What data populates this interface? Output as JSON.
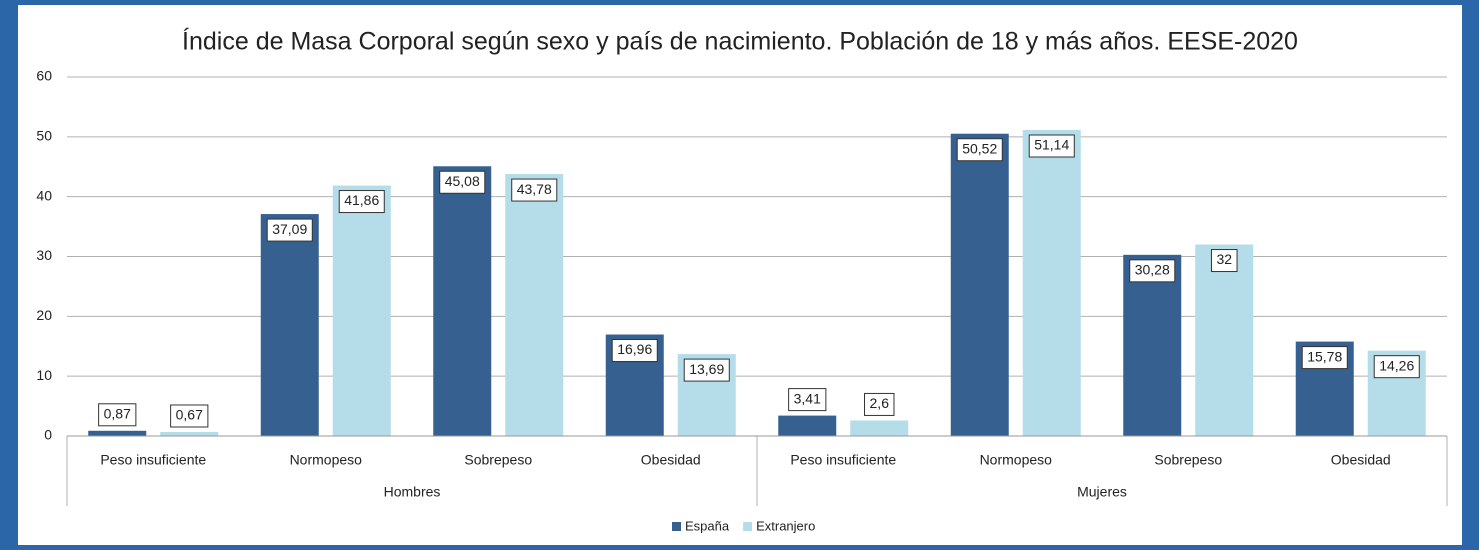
{
  "chart_data": {
    "type": "bar",
    "title": "Índice de Masa Corporal según sexo y país de nacimiento. Población de 18 y más años. EESE-2020",
    "categories": [
      "Peso insuficiente",
      "Normopeso",
      "Sobrepeso",
      "Obesidad",
      "Peso insuficiente",
      "Normopeso",
      "Sobrepeso",
      "Obesidad"
    ],
    "groups": [
      "Hombres",
      "Mujeres"
    ],
    "series": [
      {
        "name": "España",
        "color": "#35608f",
        "values": [
          0.87,
          37.09,
          45.08,
          16.96,
          3.41,
          50.52,
          30.28,
          15.78
        ],
        "value_labels": [
          "0,87",
          "37,09",
          "45,08",
          "16,96",
          "3,41",
          "50,52",
          "30,28",
          "15,78"
        ]
      },
      {
        "name": "Extranjero",
        "color": "#b4dde9",
        "values": [
          0.67,
          41.86,
          43.78,
          13.69,
          2.6,
          51.14,
          32,
          14.26
        ],
        "value_labels": [
          "0,67",
          "41,86",
          "43,78",
          "13,69",
          "2,6",
          "51,14",
          "32",
          "14,26"
        ]
      }
    ],
    "ylim": [
      0,
      60
    ],
    "yticks": [
      0,
      10,
      20,
      30,
      40,
      50,
      60
    ],
    "grid": true,
    "legend": "bottom"
  }
}
